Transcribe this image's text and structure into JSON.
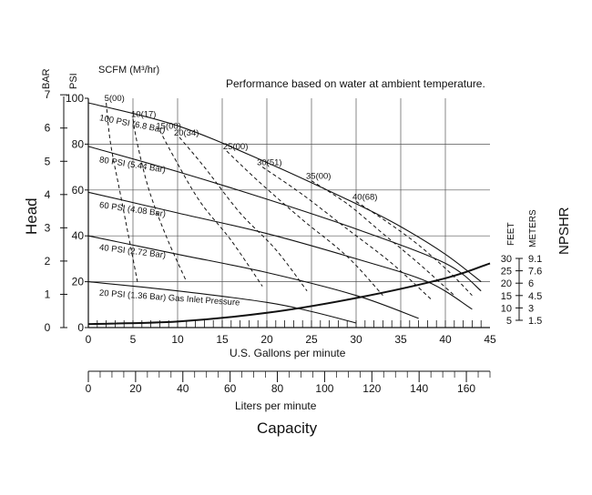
{
  "chart_data": {
    "type": "line",
    "note": "Performance based on water at ambient temperature.",
    "scfm_label": "SCFM (M³/hr)",
    "left_axis": {
      "bar_label": "BAR",
      "psi_label": "PSI",
      "bar_ticks": [
        "7",
        "6",
        "5",
        "4",
        "3",
        "2",
        "1",
        "0"
      ],
      "bar_values": [
        7,
        6,
        5,
        4,
        3,
        2,
        1,
        0
      ],
      "psi_ticks": [
        "100",
        "80",
        "60",
        "40",
        "20",
        "0"
      ],
      "psi_values": [
        100,
        80,
        60,
        40,
        20,
        0
      ],
      "ylim_psi": [
        0,
        100
      ],
      "head_label": "Head"
    },
    "x_axis": {
      "label": "U.S. Gallons per minute",
      "ticks": [
        "0",
        "5",
        "10",
        "15",
        "20",
        "25",
        "30",
        "35",
        "40",
        "45"
      ],
      "values": [
        0,
        5,
        10,
        15,
        20,
        25,
        30,
        35,
        40,
        45
      ],
      "xlim": [
        0,
        45
      ]
    },
    "x_axis_liters": {
      "label": "Liters per minute",
      "ticks": [
        "0",
        "20",
        "40",
        "60",
        "80",
        "100",
        "120",
        "140",
        "160"
      ],
      "values": [
        0,
        20,
        40,
        60,
        80,
        100,
        120,
        140,
        160
      ]
    },
    "capacity_label": "Capacity",
    "npshr": {
      "label": "NPSHR",
      "feet_label": "FEET",
      "meters_label": "METERS",
      "feet_ticks": [
        "30",
        "25",
        "20",
        "15",
        "10",
        "5"
      ],
      "meters_ticks": [
        "9.1",
        "7.6",
        "6",
        "4.5",
        "3",
        "1.5"
      ],
      "feet_values": [
        30,
        25,
        20,
        15,
        10,
        5
      ]
    },
    "pressure_curves": [
      {
        "label": "100 PSI (6.8 Bar)",
        "x": [
          0,
          10,
          20,
          30,
          35,
          40,
          44
        ],
        "y": [
          98,
          88,
          72,
          54,
          44,
          32,
          20
        ]
      },
      {
        "label": "80 PSI (5.44 Bar)",
        "x": [
          0,
          10,
          20,
          30,
          40,
          44
        ],
        "y": [
          79,
          68,
          56,
          43,
          28,
          16
        ]
      },
      {
        "label": "60 PSI (4.08 Bar)",
        "x": [
          0,
          10,
          20,
          30,
          38,
          43
        ],
        "y": [
          59,
          50,
          41,
          30,
          20,
          8
        ]
      },
      {
        "label": "40 PSI (2.72 Bar)",
        "x": [
          0,
          10,
          20,
          30,
          37
        ],
        "y": [
          40,
          32,
          24,
          14,
          4
        ]
      },
      {
        "label": "20 PSI (1.36 Bar) Gas Inlet Pressure",
        "x": [
          0,
          10,
          20,
          25,
          30
        ],
        "y": [
          20,
          16,
          11,
          7,
          2
        ]
      }
    ],
    "air_consumption_curves": [
      {
        "label": "5(00)",
        "x": [
          2,
          2.5,
          3.5,
          4.5,
          5.5
        ],
        "y": [
          98,
          80,
          60,
          40,
          20
        ]
      },
      {
        "label": "10(17)",
        "x": [
          5,
          5.5,
          6.8,
          8.7,
          11
        ],
        "y": [
          91,
          80,
          60,
          40,
          20
        ]
      },
      {
        "label": "15(00)",
        "x": [
          8,
          9.5,
          12.5,
          16,
          19.5
        ],
        "y": [
          86,
          75,
          55,
          38,
          18
        ]
      },
      {
        "label": "20(34)",
        "x": [
          10.2,
          13,
          17,
          21,
          24.5
        ],
        "y": [
          83,
          70,
          50,
          34,
          16
        ]
      },
      {
        "label": "25(00)",
        "x": [
          15.5,
          19,
          24,
          29,
          33
        ],
        "y": [
          77,
          64,
          47,
          31,
          14
        ]
      },
      {
        "label": "30(51)",
        "x": [
          19.5,
          24,
          29,
          34,
          38.5
        ],
        "y": [
          70,
          58,
          43,
          28,
          12
        ]
      },
      {
        "label": "35(00)",
        "x": [
          25,
          29,
          33,
          37,
          41
        ],
        "y": [
          64,
          54,
          41,
          28,
          14
        ]
      },
      {
        "label": "40(68)",
        "x": [
          30,
          33.5,
          37,
          40.5,
          43
        ],
        "y": [
          55,
          46,
          36,
          24,
          14
        ]
      }
    ],
    "npshr_curve": {
      "x": [
        0,
        10,
        20,
        30,
        40,
        45
      ],
      "y": [
        2,
        4,
        8,
        14,
        22,
        28
      ]
    },
    "grid": true
  }
}
